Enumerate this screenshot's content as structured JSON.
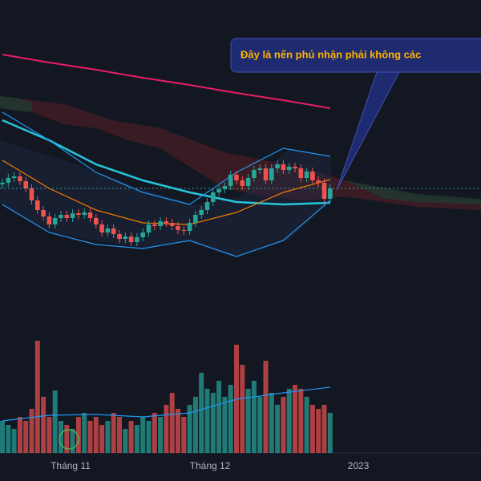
{
  "chart_data": {
    "type": "candlestick",
    "annotation": "Đây là nến phủ nhận phải không các",
    "x_labels": [
      "Tháng 11",
      "Tháng 12",
      "2023"
    ],
    "up_color": "#26a69a",
    "down_color": "#ef5350",
    "ylim": [
      0,
      600
    ],
    "open": [
      370,
      372,
      378,
      380,
      374,
      365,
      350,
      338,
      330,
      320,
      328,
      332,
      328,
      334,
      332,
      335,
      328,
      320,
      310,
      315,
      308,
      302,
      305,
      298,
      304,
      310,
      320,
      318,
      324,
      322,
      318,
      313,
      312,
      322,
      332,
      338,
      348,
      360,
      364,
      368,
      382,
      375,
      368,
      378,
      388,
      390,
      375,
      390,
      395,
      388,
      392,
      390,
      378,
      386,
      375,
      372,
      352
    ],
    "high": [
      377,
      383,
      385,
      385,
      379,
      370,
      355,
      343,
      335,
      333,
      337,
      337,
      339,
      339,
      340,
      340,
      333,
      325,
      320,
      320,
      313,
      310,
      310,
      309,
      315,
      325,
      325,
      329,
      329,
      327,
      323,
      318,
      327,
      337,
      343,
      353,
      365,
      369,
      373,
      387,
      387,
      380,
      383,
      393,
      395,
      395,
      395,
      400,
      400,
      397,
      397,
      395,
      391,
      391,
      380,
      377,
      370
    ],
    "low": [
      365,
      367,
      373,
      369,
      360,
      345,
      333,
      325,
      315,
      315,
      323,
      323,
      323,
      327,
      327,
      323,
      315,
      305,
      305,
      303,
      297,
      297,
      293,
      293,
      299,
      305,
      313,
      313,
      317,
      313,
      308,
      307,
      307,
      317,
      327,
      333,
      343,
      355,
      359,
      363,
      370,
      363,
      363,
      373,
      383,
      370,
      370,
      385,
      383,
      383,
      385,
      373,
      373,
      370,
      367,
      347,
      347
    ],
    "close": [
      372,
      378,
      380,
      374,
      365,
      350,
      338,
      330,
      320,
      328,
      332,
      328,
      334,
      332,
      335,
      328,
      320,
      310,
      315,
      308,
      302,
      305,
      298,
      304,
      310,
      320,
      318,
      324,
      322,
      318,
      313,
      312,
      322,
      332,
      338,
      348,
      360,
      364,
      368,
      382,
      375,
      368,
      378,
      388,
      390,
      375,
      390,
      395,
      388,
      392,
      390,
      378,
      386,
      375,
      372,
      352,
      365
    ],
    "volume_ylim": [
      0,
      150
    ],
    "volume": [
      40,
      35,
      30,
      45,
      40,
      55,
      140,
      70,
      45,
      78,
      40,
      35,
      30,
      45,
      50,
      40,
      45,
      35,
      40,
      50,
      45,
      30,
      40,
      35,
      45,
      40,
      50,
      45,
      60,
      75,
      55,
      45,
      60,
      70,
      100,
      80,
      75,
      90,
      70,
      85,
      135,
      110,
      80,
      90,
      70,
      115,
      75,
      60,
      70,
      80,
      85,
      80,
      70,
      60,
      55,
      60,
      50
    ],
    "lines": [
      {
        "color": "#e91e63",
        "width": 2,
        "x": [
          0,
          8,
          16,
          24,
          32,
          40,
          48,
          56
        ],
        "values": [
          532,
          522,
          513,
          503,
          494,
          484,
          475,
          465
        ]
      },
      {
        "color": "#26c6da",
        "width": 2.5,
        "x": [
          0,
          8,
          16,
          24,
          32,
          40,
          48,
          56
        ],
        "values": [
          450,
          425,
          395,
          375,
          360,
          348,
          345,
          347
        ]
      },
      {
        "color": "#f57c00",
        "width": 1.2,
        "x": [
          0,
          8,
          16,
          24,
          32,
          40,
          48,
          56
        ],
        "values": [
          400,
          365,
          338,
          322,
          320,
          335,
          360,
          376
        ]
      },
      {
        "color": "#2196f3",
        "width": 1.2,
        "x": [
          0,
          8,
          16,
          24,
          32,
          40,
          48,
          56
        ],
        "values": [
          460,
          425,
          385,
          360,
          345,
          385,
          415,
          405
        ]
      },
      {
        "color": "#2196f3",
        "width": 1.2,
        "x": [
          0,
          8,
          16,
          24,
          32,
          40,
          48,
          56
        ],
        "values": [
          345,
          310,
          295,
          290,
          300,
          280,
          300,
          350
        ]
      }
    ],
    "volume_line": {
      "color": "#2196f3",
      "x": [
        0,
        8,
        16,
        24,
        32,
        40,
        48,
        56
      ],
      "values": [
        40,
        47,
        48,
        45,
        50,
        67,
        75,
        82
      ]
    }
  }
}
